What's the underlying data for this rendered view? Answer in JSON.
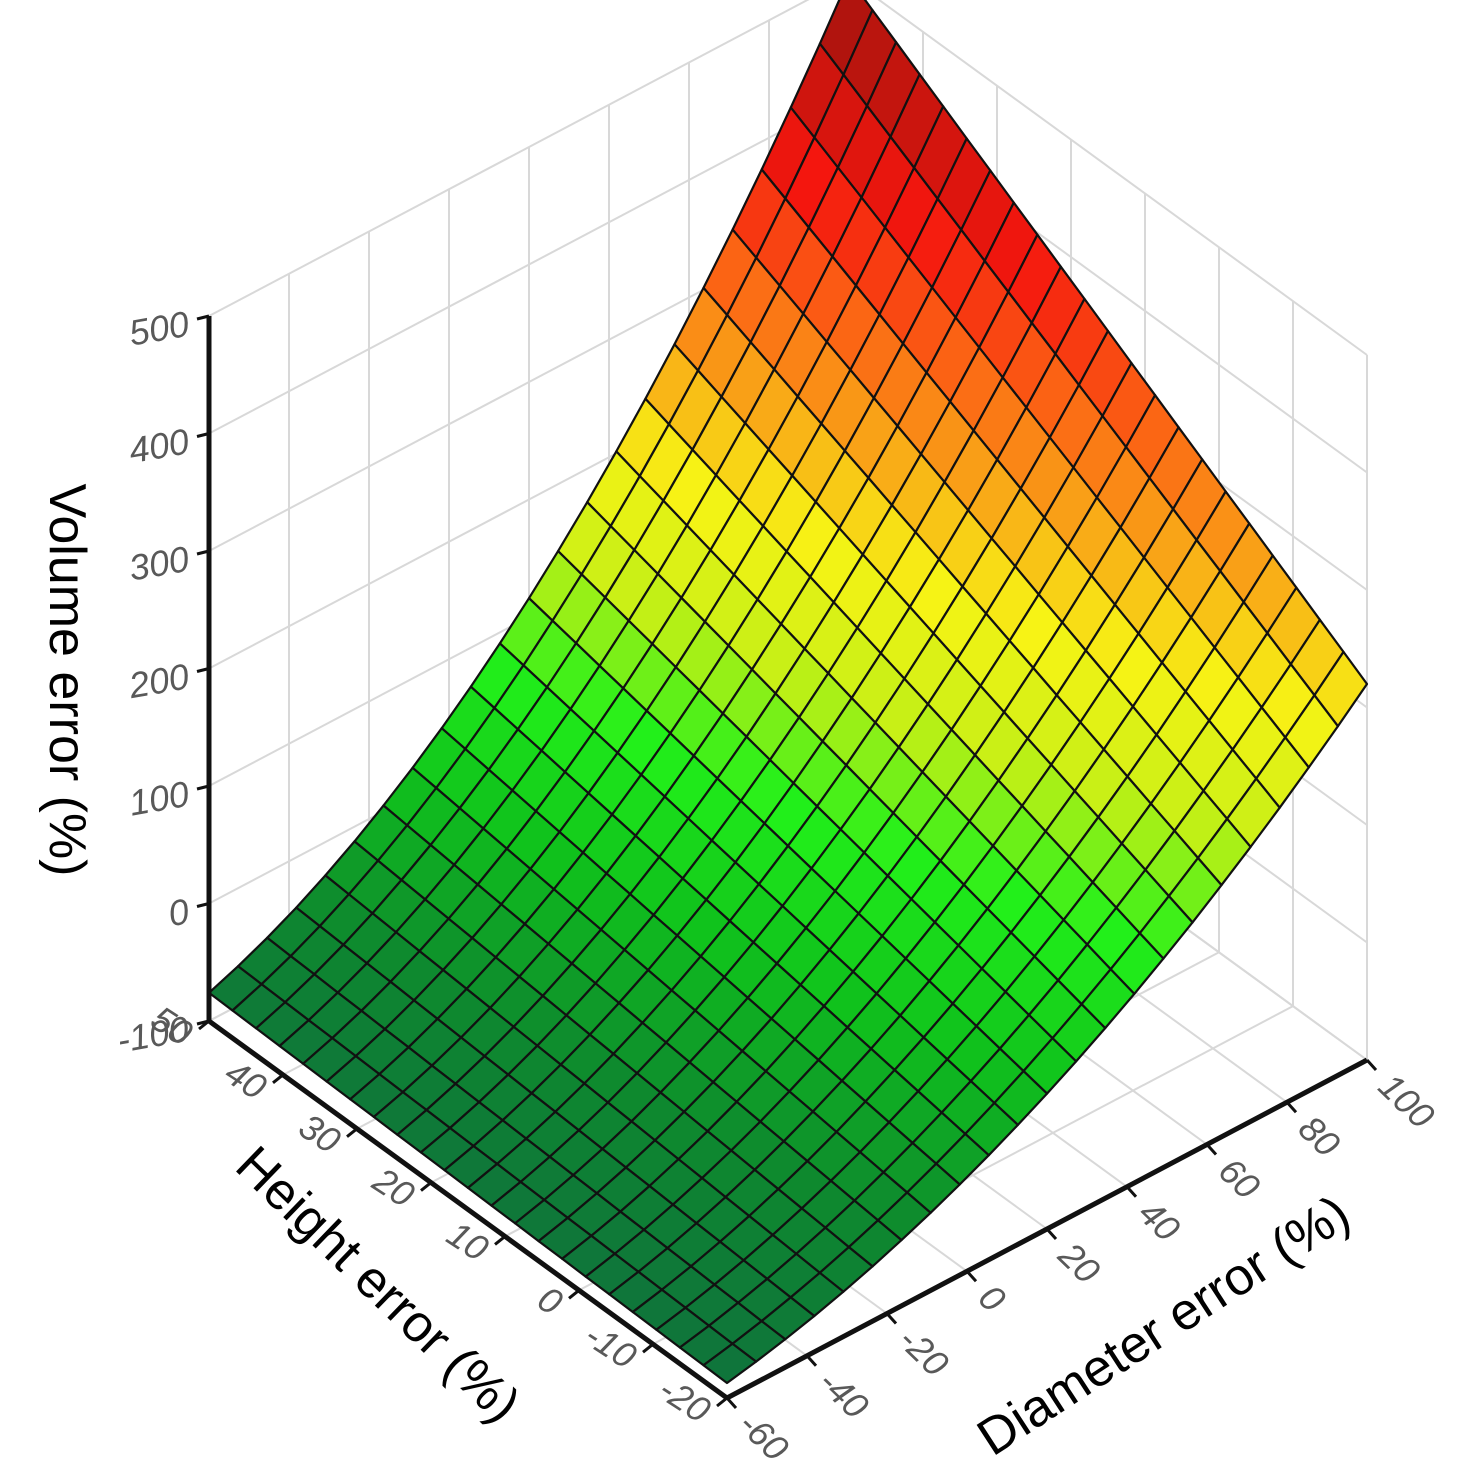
{
  "chart_data": {
    "type": "surface",
    "title": "",
    "x_axis": {
      "label": "Diameter error (%)",
      "range": [
        -60,
        100
      ],
      "ticks": [
        -60,
        -40,
        -20,
        0,
        20,
        40,
        60,
        80,
        100
      ],
      "tick_labels": [
        "-60",
        "-40",
        "-20",
        "0",
        "20",
        "40",
        "60",
        "80",
        "100"
      ]
    },
    "y_axis": {
      "label": "Height error (%)",
      "range": [
        -20,
        50
      ],
      "ticks": [
        -20,
        -10,
        0,
        10,
        20,
        30,
        40,
        50
      ],
      "tick_labels": [
        "-20",
        "-10",
        "0",
        "10",
        "20",
        "30",
        "40",
        "50"
      ]
    },
    "z_axis": {
      "label": "Volume error (%)",
      "range": [
        -100,
        500
      ],
      "ticks": [
        -100,
        0,
        100,
        200,
        300,
        400,
        500
      ],
      "tick_labels": [
        "-100",
        "0",
        "100",
        "200",
        "300",
        "400",
        "500"
      ]
    },
    "surface": {
      "diameter_error": [
        -60,
        -40,
        -20,
        0,
        20,
        40,
        60,
        80,
        100
      ],
      "height_error": [
        -20,
        -10,
        0,
        10,
        20,
        30,
        40,
        50
      ],
      "volume_error": [
        [
          -87,
          -86,
          -84,
          -82,
          -81,
          -79,
          -78,
          -76
        ],
        [
          -71,
          -68,
          -64,
          -60,
          -57,
          -53,
          -50,
          -46
        ],
        [
          -49,
          -42,
          -36,
          -30,
          -23,
          -17,
          -10,
          -4
        ],
        [
          -20,
          -10,
          0,
          10,
          20,
          30,
          40,
          50
        ],
        [
          15,
          30,
          44,
          58,
          73,
          87,
          102,
          116
        ],
        [
          57,
          76,
          96,
          115,
          135,
          154,
          174,
          194
        ],
        [
          105,
          130,
          156,
          182,
          207,
          233,
          258,
          284
        ],
        [
          159,
          192,
          224,
          257,
          289,
          322,
          354,
          386
        ],
        [
          220,
          260,
          300,
          340,
          380,
          420,
          460,
          500
        ]
      ]
    },
    "grid": true,
    "colormap": [
      "#0f6e3f",
      "#0e8a2e",
      "#10c21c",
      "#22f01a",
      "#c8f016",
      "#f7f315",
      "#f9a417",
      "#fb5e14",
      "#f4160e",
      "#c8150e",
      "#9e140e"
    ]
  }
}
